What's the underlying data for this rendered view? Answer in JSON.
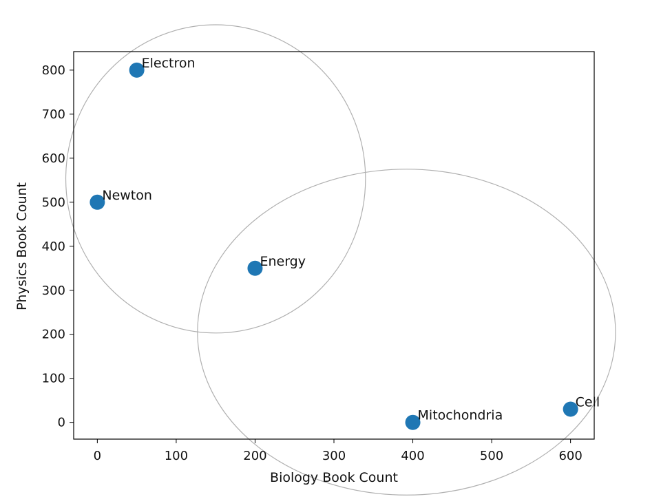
{
  "chart_data": {
    "type": "scatter",
    "title": "",
    "xlabel": "Biology Book Count",
    "ylabel": "Physics Book Count",
    "xlim": [
      -30,
      630
    ],
    "ylim": [
      -38,
      842
    ],
    "xticks": [
      0,
      100,
      200,
      300,
      400,
      500,
      600
    ],
    "yticks": [
      0,
      100,
      200,
      300,
      400,
      500,
      600,
      700,
      800
    ],
    "grid": false,
    "point_color": "#1f77b4",
    "circle_color": "#b0b0b0",
    "points": [
      {
        "label": "Electron",
        "x": 50,
        "y": 800
      },
      {
        "label": "Newton",
        "x": 0,
        "y": 500
      },
      {
        "label": "Energy",
        "x": 200,
        "y": 350
      },
      {
        "label": "Mitochondria",
        "x": 400,
        "y": 0
      },
      {
        "label": "Cell",
        "x": 600,
        "y": 30
      }
    ],
    "circles": [
      {
        "cx": 150,
        "cy": 553,
        "rx": 190,
        "ry": 350
      },
      {
        "cx": 392,
        "cy": 205,
        "rx": 265,
        "ry": 370
      }
    ]
  }
}
